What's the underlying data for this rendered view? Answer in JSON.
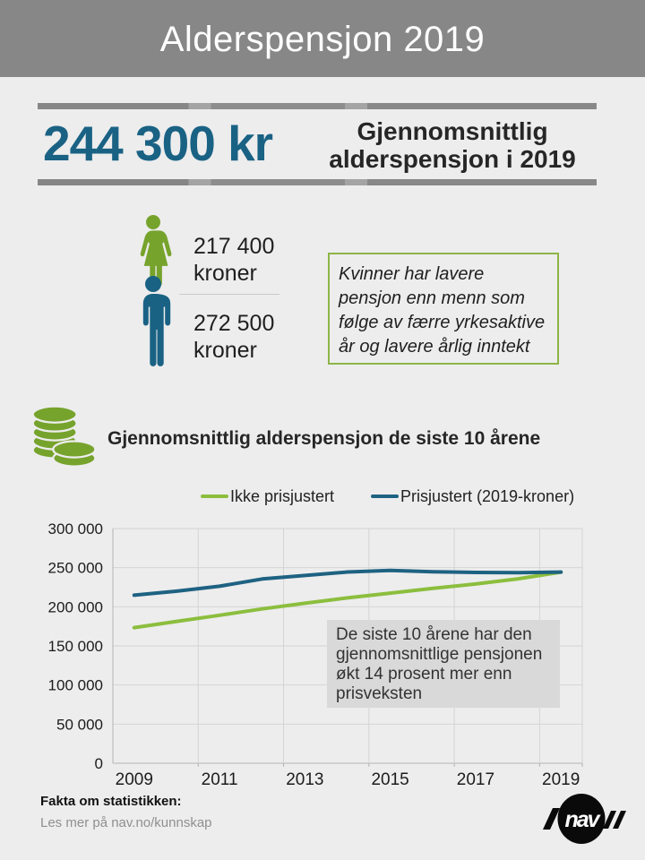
{
  "header": {
    "title": "Alderspensjon 2019"
  },
  "hero": {
    "amount": "244 300 kr",
    "caption_line1": "Gjennomsnittlig",
    "caption_line2": "alderspensjon i 2019"
  },
  "gender": {
    "women": {
      "value": "217 400",
      "unit": "kroner"
    },
    "men": {
      "value": "272 500",
      "unit": "kroner"
    },
    "note": "Kvinner har lavere pensjon enn menn som følge av færre yrkesaktive år og lavere årlig inntekt"
  },
  "chart_section": {
    "title": "Gjennomsnittlig alderspensjon de siste 10 årene",
    "annotation": "De siste 10 årene har den gjennomsnittlige pensjonen økt 14 prosent mer enn prisveksten"
  },
  "chart_data": {
    "type": "line",
    "x": [
      2009,
      2010,
      2011,
      2012,
      2013,
      2014,
      2015,
      2016,
      2017,
      2018,
      2019
    ],
    "series": [
      {
        "name": "Ikke prisjustert",
        "color": "#8cbe3e",
        "values": [
          173400,
          181400,
          189200,
          197300,
          204500,
          211400,
          217500,
          223500,
          229100,
          235800,
          244300
        ]
      },
      {
        "name": "Prisjustert (2019-kroner)",
        "color": "#1e6282",
        "values": [
          214800,
          220000,
          226300,
          235500,
          240000,
          244500,
          246400,
          244800,
          243900,
          243600,
          244300
        ]
      }
    ],
    "xtick_labels": [
      "2009",
      "2011",
      "2013",
      "2015",
      "2017",
      "2019"
    ],
    "xtick_indices": [
      0,
      2,
      4,
      6,
      8,
      10
    ],
    "ytick_labels": [
      "0",
      "50 000",
      "100 000",
      "150 000",
      "200 000",
      "250 000",
      "300 000"
    ],
    "ytick_values": [
      0,
      50000,
      100000,
      150000,
      200000,
      250000,
      300000
    ],
    "ylim": [
      0,
      300000
    ],
    "grid": true,
    "legend_position": "top"
  },
  "footer": {
    "fact_label": "Fakta om statistikken:",
    "fact_link": "Les mer på nav.no/kunnskap",
    "logo_text": "nav"
  },
  "colors": {
    "page_bg": "#ededed",
    "header_gray": "#878787",
    "accent_blue": "#1a6284",
    "accent_green": "#76a32c",
    "line_green": "#8cbe3e",
    "line_blue": "#1e6282",
    "annotation_bg": "#d9d9d9",
    "grid": "#d4d4d4",
    "axis": "#b3b3b3"
  }
}
